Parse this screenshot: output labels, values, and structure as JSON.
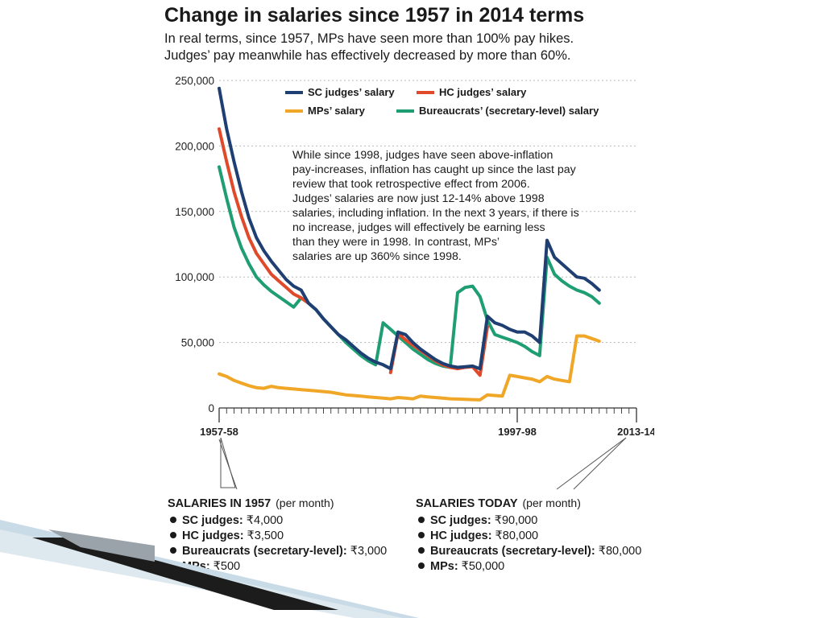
{
  "header": {
    "title": "Change in salaries since 1957 in 2014 terms",
    "subtitle_lines": [
      "In real terms, since 1957, MPs have seen more than 100% pay hikes.",
      "Judges’ pay meanwhile has effectively decreased by more than 60%."
    ]
  },
  "annotation_lines": [
    "While since 1998, judges have seen above-inflation",
    "pay-increases, inflation has caught up since the last pay",
    "review that took retrospective effect from 2006.",
    "Judges’ salaries are now just 12-14% above 1998",
    "salaries, including inflation. In the next 3 years, if there is",
    "no increase, judges will effectively be earning less",
    "than they were in 1998. In contrast, MPs’",
    "salaries are up 360% since 1998."
  ],
  "boxes": [
    {
      "heading": "SALARIES IN 1957",
      "heading_sub": "(per month)",
      "items": [
        {
          "label": "SC judges:",
          "value": "₹4,000"
        },
        {
          "label": "HC judges:",
          "value": "₹3,500"
        },
        {
          "label": "Bureaucrats (secretary-level):",
          "value": "₹3,000"
        },
        {
          "label": "MPs:",
          "value": "₹500"
        }
      ]
    },
    {
      "heading": "SALARIES TODAY",
      "heading_sub": "(per month)",
      "items": [
        {
          "label": "SC judges:",
          "value": "₹90,000"
        },
        {
          "label": "HC judges:",
          "value": "₹80,000"
        },
        {
          "label": "Bureaucrats (secretary-level):",
          "value": "₹80,000"
        },
        {
          "label": "MPs:",
          "value": "₹50,000"
        }
      ]
    }
  ],
  "chart_data": {
    "type": "line",
    "title": "Change in salaries since 1957 in 2014 terms",
    "x_start_label": "1957-58",
    "x_labels": [
      {
        "index": 0,
        "label": "1957-58"
      },
      {
        "index": 40,
        "label": "1997-98"
      },
      {
        "index": 56,
        "label": "2013-14"
      }
    ],
    "ylim": [
      0,
      250000
    ],
    "y_ticks": [
      {
        "value": 0,
        "label": "0"
      },
      {
        "value": 50000,
        "label": "50,000"
      },
      {
        "value": 100000,
        "label": "100,000"
      },
      {
        "value": 150000,
        "label": "150,000"
      },
      {
        "value": 200000,
        "label": "200,000"
      },
      {
        "value": 250000,
        "label": "250,000"
      }
    ],
    "grid": "horizontal-dotted",
    "legend_position": "top",
    "series": [
      {
        "name": "SC judges’ salary",
        "color": "#1f3f73",
        "points": [
          [
            0,
            244000
          ],
          [
            1,
            213000
          ],
          [
            2,
            188000
          ],
          [
            3,
            165000
          ],
          [
            4,
            145000
          ],
          [
            5,
            130000
          ],
          [
            6,
            120000
          ],
          [
            7,
            112000
          ],
          [
            8,
            105000
          ],
          [
            9,
            98000
          ],
          [
            10,
            93000
          ],
          [
            11,
            90000
          ],
          [
            12,
            80000
          ],
          [
            13,
            75000
          ],
          [
            14,
            68000
          ],
          [
            15,
            62000
          ],
          [
            16,
            56000
          ],
          [
            17,
            52000
          ],
          [
            18,
            47000
          ],
          [
            19,
            42000
          ],
          [
            20,
            38000
          ],
          [
            21,
            35000
          ],
          [
            22,
            33000
          ],
          [
            23,
            30000
          ],
          [
            24,
            58000
          ],
          [
            25,
            56000
          ],
          [
            26,
            50000
          ],
          [
            27,
            45000
          ],
          [
            28,
            41000
          ],
          [
            29,
            37000
          ],
          [
            30,
            34000
          ],
          [
            31,
            32000
          ],
          [
            32,
            31000
          ],
          [
            33,
            31500
          ],
          [
            34,
            32000
          ],
          [
            35,
            30000
          ],
          [
            36,
            70000
          ],
          [
            37,
            65000
          ],
          [
            38,
            63000
          ],
          [
            39,
            60000
          ],
          [
            40,
            58000
          ],
          [
            41,
            58000
          ],
          [
            42,
            55000
          ],
          [
            43,
            50000
          ],
          [
            44,
            128000
          ],
          [
            45,
            115000
          ],
          [
            46,
            110000
          ],
          [
            47,
            105000
          ],
          [
            48,
            100000
          ],
          [
            49,
            99000
          ],
          [
            50,
            95000
          ],
          [
            51,
            90000
          ]
        ]
      },
      {
        "name": "HC judges’ salary",
        "color": "#e04a2a",
        "points": [
          [
            0,
            213000
          ],
          [
            1,
            188000
          ],
          [
            2,
            165000
          ],
          [
            3,
            146000
          ],
          [
            4,
            130000
          ],
          [
            5,
            118000
          ],
          [
            6,
            110000
          ],
          [
            7,
            102000
          ],
          [
            8,
            97000
          ],
          [
            9,
            92000
          ],
          [
            10,
            87000
          ],
          [
            11,
            84000
          ],
          [
            12,
            80000
          ],
          [
            23,
            27000
          ],
          [
            24,
            57000
          ],
          [
            25,
            52000
          ],
          [
            26,
            48000
          ],
          [
            27,
            44000
          ],
          [
            28,
            40000
          ],
          [
            29,
            36000
          ],
          [
            30,
            33000
          ],
          [
            31,
            31000
          ],
          [
            32,
            30000
          ],
          [
            33,
            31000
          ],
          [
            34,
            31500
          ],
          [
            35,
            25000
          ],
          [
            36,
            62000
          ]
        ]
      },
      {
        "name": "MPs’ salary",
        "color": "#f0a626",
        "points": [
          [
            0,
            26000
          ],
          [
            1,
            24000
          ],
          [
            2,
            21000
          ],
          [
            3,
            19000
          ],
          [
            4,
            17000
          ],
          [
            5,
            15500
          ],
          [
            6,
            15000
          ],
          [
            7,
            16500
          ],
          [
            8,
            15500
          ],
          [
            9,
            15000
          ],
          [
            10,
            14500
          ],
          [
            11,
            14000
          ],
          [
            12,
            13500
          ],
          [
            13,
            13000
          ],
          [
            14,
            12500
          ],
          [
            15,
            12000
          ],
          [
            16,
            11000
          ],
          [
            17,
            10000
          ],
          [
            18,
            9500
          ],
          [
            19,
            9000
          ],
          [
            20,
            8500
          ],
          [
            21,
            8000
          ],
          [
            22,
            7500
          ],
          [
            23,
            7000
          ],
          [
            24,
            8000
          ],
          [
            25,
            7500
          ],
          [
            26,
            7000
          ],
          [
            27,
            9000
          ],
          [
            28,
            8500
          ],
          [
            29,
            8000
          ],
          [
            30,
            7500
          ],
          [
            31,
            7000
          ],
          [
            32,
            6800
          ],
          [
            33,
            6600
          ],
          [
            34,
            6400
          ],
          [
            35,
            6200
          ],
          [
            36,
            10000
          ],
          [
            37,
            9500
          ],
          [
            38,
            9000
          ],
          [
            39,
            25000
          ],
          [
            40,
            24000
          ],
          [
            41,
            23000
          ],
          [
            42,
            22000
          ],
          [
            43,
            20000
          ],
          [
            44,
            24000
          ],
          [
            45,
            22000
          ],
          [
            46,
            21000
          ],
          [
            47,
            20000
          ],
          [
            48,
            55000
          ],
          [
            49,
            55000
          ],
          [
            50,
            53000
          ],
          [
            51,
            51000
          ]
        ]
      },
      {
        "name": "Bureaucrats’ (secretary-level) salary",
        "color": "#1f9e74",
        "points": [
          [
            0,
            184000
          ],
          [
            1,
            160000
          ],
          [
            2,
            138000
          ],
          [
            3,
            122000
          ],
          [
            4,
            110000
          ],
          [
            5,
            100000
          ],
          [
            6,
            94000
          ],
          [
            7,
            89000
          ],
          [
            8,
            85000
          ],
          [
            9,
            81000
          ],
          [
            10,
            77000
          ],
          [
            11,
            84000
          ],
          [
            12,
            80000
          ],
          [
            13,
            75000
          ],
          [
            14,
            68000
          ],
          [
            15,
            62000
          ],
          [
            16,
            56000
          ],
          [
            17,
            50000
          ],
          [
            18,
            45000
          ],
          [
            19,
            40000
          ],
          [
            20,
            36000
          ],
          [
            21,
            33000
          ],
          [
            22,
            65000
          ],
          [
            23,
            60000
          ],
          [
            24,
            55000
          ],
          [
            25,
            50000
          ],
          [
            26,
            45000
          ],
          [
            27,
            41000
          ],
          [
            28,
            37000
          ],
          [
            29,
            34000
          ],
          [
            30,
            32000
          ],
          [
            31,
            31000
          ],
          [
            32,
            88000
          ],
          [
            33,
            92000
          ],
          [
            34,
            93000
          ],
          [
            35,
            85000
          ],
          [
            36,
            67000
          ],
          [
            37,
            56000
          ],
          [
            38,
            54000
          ],
          [
            39,
            52000
          ],
          [
            40,
            50000
          ],
          [
            41,
            47000
          ],
          [
            42,
            43000
          ],
          [
            43,
            40000
          ],
          [
            44,
            115000
          ],
          [
            45,
            102000
          ],
          [
            46,
            97000
          ],
          [
            47,
            93000
          ],
          [
            48,
            90000
          ],
          [
            49,
            88000
          ],
          [
            50,
            85000
          ],
          [
            51,
            80000
          ]
        ]
      }
    ]
  }
}
